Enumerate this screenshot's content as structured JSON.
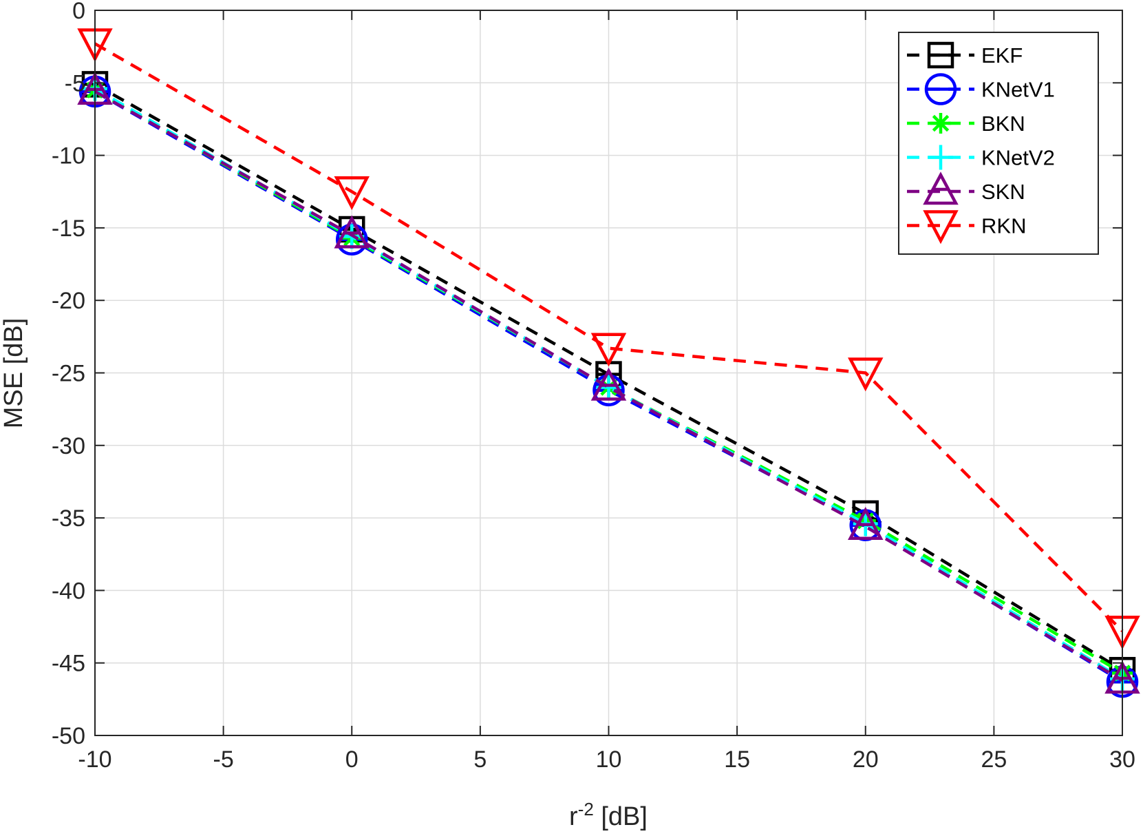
{
  "chart_data": {
    "type": "line",
    "title": "",
    "xlabel": "r",
    "xlabel_superscript": "-2",
    "xlabel_suffix": " [dB]",
    "ylabel": "MSE [dB]",
    "xlim": [
      -10,
      30
    ],
    "ylim": [
      -50,
      0
    ],
    "xticks": [
      -10,
      -5,
      0,
      5,
      10,
      15,
      20,
      25,
      30
    ],
    "yticks": [
      0,
      -5,
      -10,
      -15,
      -20,
      -25,
      -30,
      -35,
      -40,
      -45,
      -50
    ],
    "grid": true,
    "legend_position": "top-right",
    "x": [
      -10,
      0,
      10,
      20,
      30
    ],
    "series": [
      {
        "name": "EKF",
        "color": "#000000",
        "marker": "square-minus",
        "values": [
          -5.1,
          -15.1,
          -25.1,
          -34.7,
          -45.5
        ]
      },
      {
        "name": "KNetV1",
        "color": "#0000ff",
        "marker": "circle-minus",
        "values": [
          -5.6,
          -15.8,
          -26.2,
          -35.5,
          -46.3
        ]
      },
      {
        "name": "BKN",
        "color": "#00ff00",
        "marker": "asterisk",
        "values": [
          -5.5,
          -15.7,
          -26.0,
          -35.2,
          -45.7
        ]
      },
      {
        "name": "KNetV2",
        "color": "#00ffff",
        "marker": "plus",
        "values": [
          -5.4,
          -15.6,
          -26.0,
          -35.4,
          -46.1
        ]
      },
      {
        "name": "SKN",
        "color": "#7e0084",
        "marker": "triangle-up",
        "values": [
          -5.6,
          -15.5,
          -26.0,
          -35.6,
          -46.2
        ]
      },
      {
        "name": "RKN",
        "color": "#ff0000",
        "marker": "triangle-down",
        "values": [
          -2.3,
          -12.5,
          -23.3,
          -25.0,
          -42.8
        ]
      }
    ]
  }
}
